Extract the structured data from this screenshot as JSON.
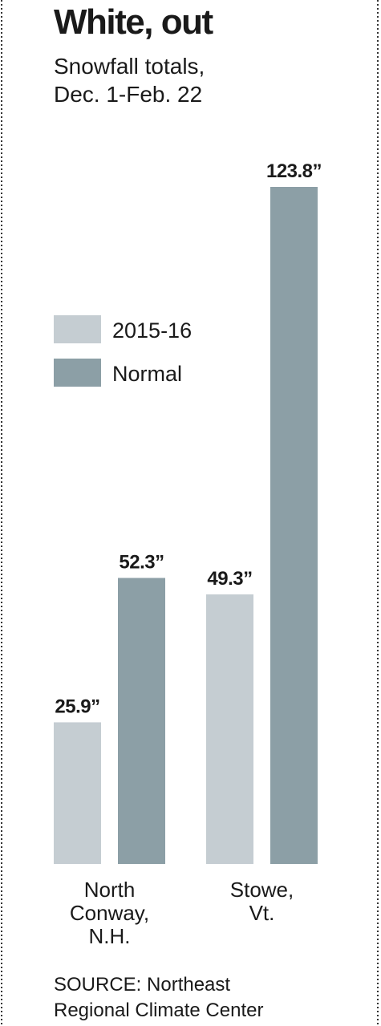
{
  "chart_data": {
    "type": "bar",
    "title": "White, out",
    "subtitle": [
      "Snowfall totals,",
      "Dec. 1-Feb. 22"
    ],
    "categories": [
      [
        "North",
        "Conway,",
        "N.H."
      ],
      [
        "Stowe,",
        "Vt."
      ]
    ],
    "series": [
      {
        "name": "2015-16",
        "color": "#c5cdd2",
        "values": [
          25.9,
          49.3
        ],
        "value_labels": [
          "25.9”",
          "49.3”"
        ]
      },
      {
        "name": "Normal",
        "color": "#8c9fa6",
        "values": [
          52.3,
          123.8
        ],
        "value_labels": [
          "52.3”",
          "123.8”"
        ]
      }
    ],
    "source": [
      "SOURCE: Northeast",
      "Regional Climate Center"
    ]
  }
}
